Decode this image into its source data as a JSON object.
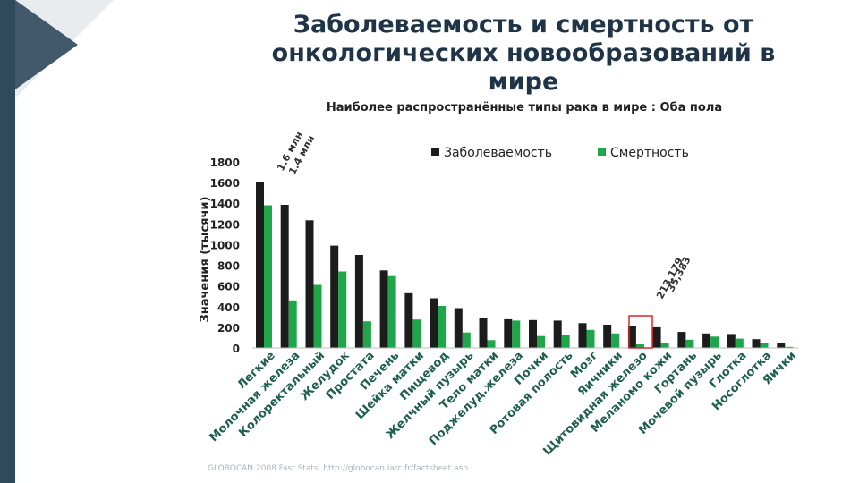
{
  "slide": {
    "title_line1": "Заболеваемость и смертность от",
    "title_line2": "онкологических новообразований в мире",
    "source": "GLOBOCAN 2008 Fast Stats, http://globocan.iarc.fr/factsheet.asp"
  },
  "colors": {
    "incidence": "#1c1c1c",
    "mortality": "#1fa64a",
    "highlight": "#d9262b",
    "accent_bar": "#2e4a5c"
  },
  "chart_data": {
    "type": "bar",
    "title": "Наиболее распространённые типы рака в мире : Оба пола",
    "ylabel": "Значения (тысячи)",
    "xlabel": "",
    "ylim": [
      0,
      1800
    ],
    "yticks": [
      0,
      200,
      400,
      600,
      800,
      1000,
      1200,
      1400,
      1600,
      1800
    ],
    "legend": [
      "Заболеваемость",
      "Смертность"
    ],
    "categories": [
      "Легкие",
      "Молочная железа",
      "Колоректальный",
      "Желудок",
      "Простата",
      "Печень",
      "Шейка матки",
      "Пищевод",
      "Желчный пузырь",
      "Тело матки",
      "Поджелуд.железа",
      "Почки",
      "Ротовая полость",
      "Мозг",
      "Яичники",
      "Щитовидная железо",
      "Меланомо кожи",
      "Гортань",
      "Мочевой пузырь",
      "Глотка",
      "Носоглотка",
      "Яички"
    ],
    "series": [
      {
        "name": "Заболеваемость",
        "values": [
          1610,
          1385,
          1235,
          990,
          900,
          750,
          530,
          480,
          385,
          290,
          278,
          270,
          265,
          240,
          225,
          213,
          200,
          155,
          140,
          135,
          85,
          52
        ]
      },
      {
        "name": "Смертность",
        "values": [
          1380,
          460,
          610,
          740,
          258,
          695,
          275,
          407,
          150,
          75,
          265,
          115,
          125,
          175,
          140,
          35,
          46,
          80,
          110,
          90,
          50,
          10
        ]
      }
    ],
    "annotations": [
      {
        "text": "1.6 млн",
        "target": "Легкие / Заболеваемость"
      },
      {
        "text": "1.4 млн",
        "target": "Легкие / Смертность"
      },
      {
        "text": "213,179",
        "target": "Щитовидная железо / Заболеваемость"
      },
      {
        "text": "35,383",
        "target": "Щитовидная железо / Смертность"
      }
    ],
    "highlight_category": "Щитовидная железо"
  }
}
